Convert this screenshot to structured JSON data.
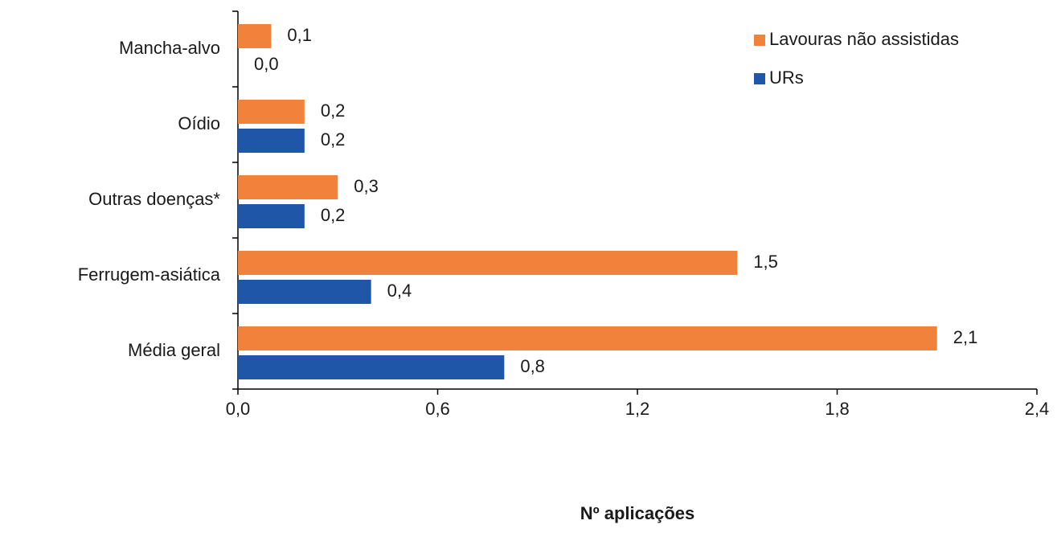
{
  "chart_data": {
    "type": "hbar",
    "xlabel": "Nº aplicações",
    "categories": [
      "Mancha-alvo",
      "Oídio",
      "Outras doenças*",
      "Ferrugem-asiática",
      "Média geral"
    ],
    "series": [
      {
        "name": "Lavouras não assistidas",
        "color": "#f0823c",
        "values": [
          0.1,
          0.2,
          0.3,
          1.5,
          2.1
        ],
        "value_labels": [
          "0,1",
          "0,2",
          "0,3",
          "1,5",
          "2,1"
        ]
      },
      {
        "name": "URs",
        "color": "#1f56a8",
        "values": [
          0.0,
          0.2,
          0.2,
          0.4,
          0.8
        ],
        "value_labels": [
          "0,0",
          "0,2",
          "0,2",
          "0,4",
          "0,8"
        ]
      }
    ],
    "xlim": [
      0,
      2.4
    ],
    "xticks": [
      {
        "value": 0,
        "label": "0,0"
      },
      {
        "value": 0.6,
        "label": "0,6"
      },
      {
        "value": 1.2,
        "label": "1,2"
      },
      {
        "value": 1.8,
        "label": "1,8"
      },
      {
        "value": 2.4,
        "label": "2,4"
      }
    ],
    "legend": "upper right"
  }
}
